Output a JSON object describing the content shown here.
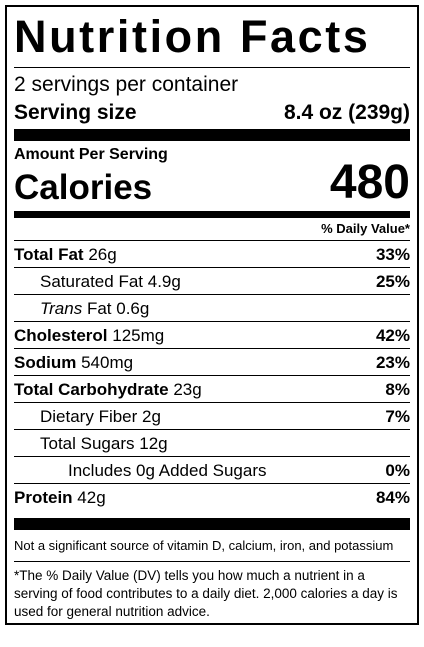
{
  "title": "Nutrition Facts",
  "servings": "2 servings per container",
  "serving_size": {
    "label": "Serving size",
    "value": "8.4 oz (239g)"
  },
  "amount_per_serving": "Amount Per Serving",
  "calories": {
    "label": "Calories",
    "value": "480"
  },
  "dv_header": "% Daily Value*",
  "nutrients": [
    {
      "name": "Total Fat",
      "amount": "26g",
      "dv": "33%",
      "sub": [
        {
          "name": "Saturated Fat",
          "amount": "4.9g",
          "dv": "25%"
        },
        {
          "italic": "Trans",
          "name": "Fat",
          "amount": "0.6g"
        }
      ]
    },
    {
      "name": "Cholesterol",
      "amount": "125mg",
      "dv": "42%"
    },
    {
      "name": "Sodium",
      "amount": "540mg",
      "dv": "23%"
    },
    {
      "name": "Total Carbohydrate",
      "amount": "23g",
      "dv": "8%",
      "sub": [
        {
          "name": "Dietary Fiber",
          "amount": "2g",
          "dv": "7%"
        },
        {
          "name": "Total Sugars",
          "amount": "12g",
          "sub": [
            {
              "name": "Includes 0g Added Sugars",
              "dv": "0%"
            }
          ]
        }
      ]
    },
    {
      "name": "Protein",
      "amount": "42g",
      "dv": "84%"
    }
  ],
  "footnotes": [
    "Not a significant source of vitamin D, calcium, iron, and potassium",
    "*The % Daily Value (DV) tells you how much a nutrient in a serving of food contributes to a daily diet. 2,000 calories a day is used for general nutrition advice."
  ]
}
